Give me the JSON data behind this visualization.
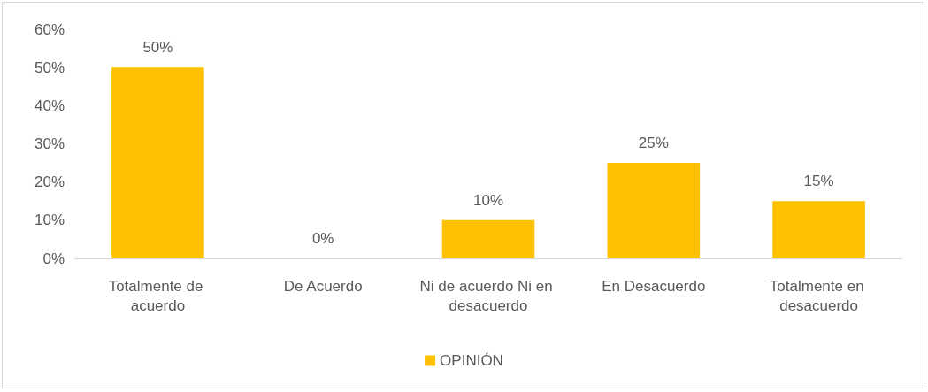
{
  "chart_data": {
    "type": "bar",
    "categories": [
      "Totalmente de acuerdo",
      "De Acuerdo",
      "Ni de acuerdo Ni en desacuerdo",
      "En Desacuerdo",
      "Totalmente en desacuerdo"
    ],
    "series": [
      {
        "name": "OPINIÓN",
        "color": "#ffc000",
        "values": [
          50,
          0,
          10,
          25,
          15
        ],
        "value_labels": [
          "50%",
          "0%",
          "10%",
          "25%",
          "15%"
        ]
      }
    ],
    "ylim": [
      0,
      60
    ],
    "yticks": [
      {
        "value": 0,
        "label": "0%"
      },
      {
        "value": 10,
        "label": "10%"
      },
      {
        "value": 20,
        "label": "20%"
      },
      {
        "value": 30,
        "label": "30%"
      },
      {
        "value": 40,
        "label": "40%"
      },
      {
        "value": 50,
        "label": "50%"
      },
      {
        "value": 60,
        "label": "60%"
      }
    ],
    "grid": false,
    "legend": "bottom"
  }
}
